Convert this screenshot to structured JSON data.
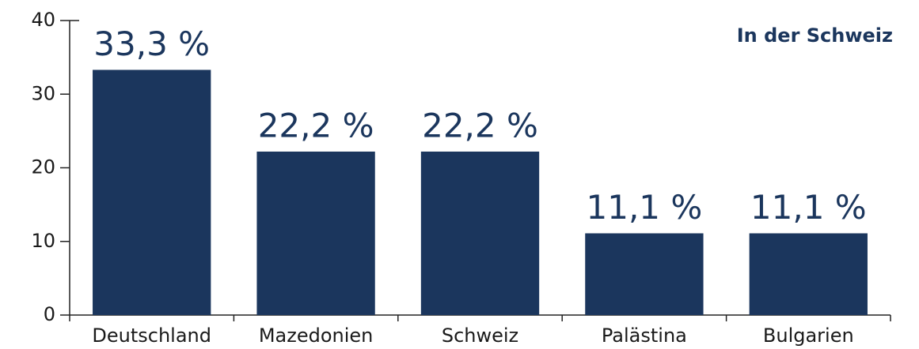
{
  "chart_data": {
    "type": "bar",
    "annotation": "In der Schweiz",
    "categories": [
      "Deutschland",
      "Mazedonien",
      "Schweiz",
      "Palästina",
      "Bulgarien"
    ],
    "values": [
      33.3,
      22.2,
      22.2,
      11.1,
      11.1
    ],
    "value_labels": [
      "33,3 %",
      "22,2 %",
      "22,2 %",
      "11,1 %",
      "11,1 %"
    ],
    "color": "#1b365d",
    "ylim": [
      0,
      40
    ],
    "yticks": [
      0,
      10,
      20,
      30,
      40
    ],
    "grid": false
  }
}
